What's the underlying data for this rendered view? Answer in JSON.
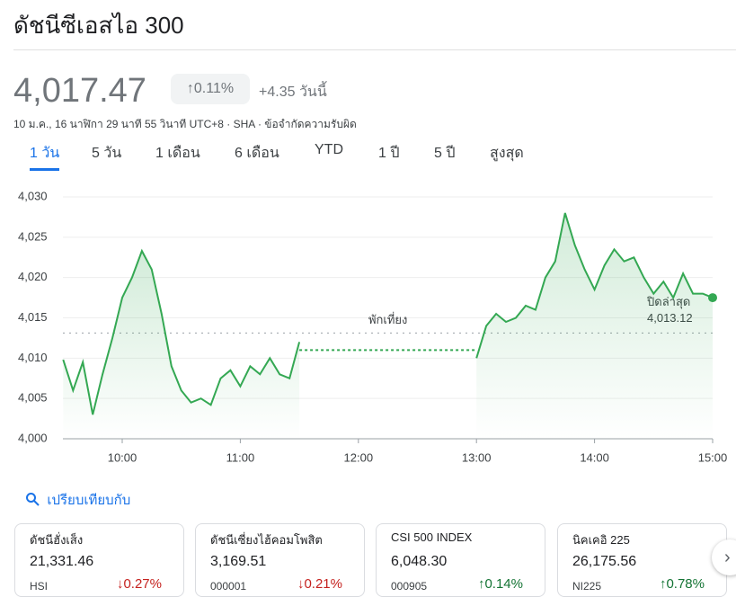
{
  "header": {
    "title": "ดัชนีซีเอสไอ 300",
    "price": "4,017.47",
    "change_pct": "0.11%",
    "change_abs": "+4.35",
    "period": "วันนี้",
    "meta": "10 ม.ค., 16 นาฬิกา 29 นาที 55 วินาที UTC+8 · SHA · ข้อจำกัดความรับผิด"
  },
  "tabs": {
    "items": [
      "1 วัน",
      "5 วัน",
      "1 เดือน",
      "6 เดือน",
      "YTD",
      "1 ปี",
      "5 ปี",
      "สูงสุด"
    ],
    "active": 0
  },
  "chart_data": {
    "type": "line",
    "x": [
      570,
      575,
      580,
      585,
      590,
      595,
      600,
      605,
      610,
      615,
      620,
      625,
      630,
      635,
      640,
      645,
      650,
      655,
      660,
      665,
      670,
      675,
      680,
      685,
      690,
      735,
      780,
      785,
      790,
      795,
      800,
      805,
      810,
      815,
      820,
      825,
      830,
      835,
      840,
      845,
      850,
      855,
      860,
      865,
      870,
      875,
      880,
      885,
      890,
      895,
      900
    ],
    "series": [
      {
        "name": "ดัชนีซีเอสไอ 300",
        "color": "#34a853",
        "values": [
          4009.8,
          4006,
          4009.5,
          4003,
          4008,
          4012.5,
          4017.5,
          4020,
          4023.3,
          4021,
          4015.5,
          4009,
          4006,
          4004.5,
          4005,
          4004.2,
          4007.5,
          4008.5,
          4006.5,
          4009,
          4008,
          4010,
          4008,
          4007.5,
          4012,
          null,
          4010,
          4014,
          4015.5,
          4014.5,
          4015,
          4016.5,
          4016,
          4020,
          4022,
          4028,
          4024,
          4021,
          4018.5,
          4021.5,
          4023.5,
          4022,
          4022.5,
          4020,
          4018,
          4019.5,
          4017.5,
          4020.5,
          4018,
          4018,
          4017.5
        ]
      }
    ],
    "xlim": [
      570,
      900
    ],
    "xticks": [
      {
        "value": 600,
        "label": "10:00"
      },
      {
        "value": 660,
        "label": "11:00"
      },
      {
        "value": 720,
        "label": "12:00"
      },
      {
        "value": 780,
        "label": "13:00"
      },
      {
        "value": 840,
        "label": "14:00"
      },
      {
        "value": 900,
        "label": "15:00"
      }
    ],
    "ylim": [
      4000,
      4030
    ],
    "yticks": [
      {
        "value": 4000,
        "label": "4,000"
      },
      {
        "value": 4005,
        "label": "4,005"
      },
      {
        "value": 4010,
        "label": "4,010"
      },
      {
        "value": 4015,
        "label": "4,015"
      },
      {
        "value": 4020,
        "label": "4,020"
      },
      {
        "value": 4025,
        "label": "4,025"
      },
      {
        "value": 4030,
        "label": "4,030"
      }
    ],
    "grid": true,
    "previous_close": {
      "label": "ปิดล่าสุด",
      "value": 4013.12,
      "value_label": "4,013.12"
    },
    "break": {
      "label": "พักเที่ยง",
      "value": 4011,
      "start": 690,
      "end": 780
    }
  },
  "compare": {
    "title": "เปรียบเทียบกับ",
    "cards": [
      {
        "name": "ดัชนีฮั่งเส็ง",
        "price": "21,331.46",
        "code": "HSI",
        "change": "0.27%",
        "direction": "down"
      },
      {
        "name": "ดัชนีเซี่ยงไฮ้คอมโพสิต",
        "price": "3,169.51",
        "code": "000001",
        "change": "0.21%",
        "direction": "down"
      },
      {
        "name": "CSI 500 INDEX",
        "price": "6,048.30",
        "code": "000905",
        "change": "0.14%",
        "direction": "up"
      },
      {
        "name": "นิคเคอิ 225",
        "price": "26,175.56",
        "code": "NI225",
        "change": "0.78%",
        "direction": "up"
      }
    ]
  }
}
